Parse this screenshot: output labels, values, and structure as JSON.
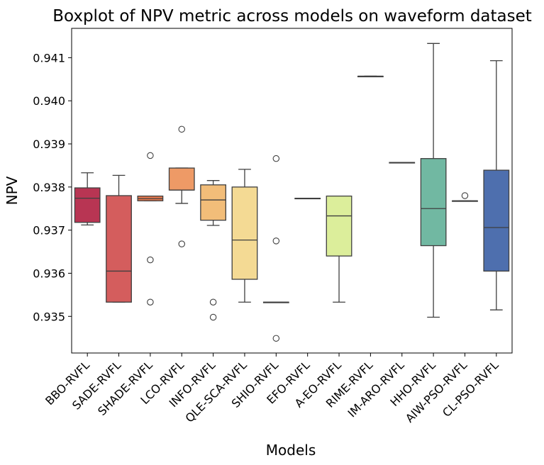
{
  "chart_data": {
    "type": "boxplot",
    "title": "Boxplot of NPV metric across models on waveform dataset",
    "xlabel": "Models",
    "ylabel": "NPV",
    "ylim": [
      0.93415,
      0.94168
    ],
    "yticks": [
      "0.935",
      "0.936",
      "0.937",
      "0.938",
      "0.939",
      "0.940",
      "0.941"
    ],
    "grid": false,
    "categories": [
      "BBO-RVFL",
      "SADE-RVFL",
      "SHADE-RVFL",
      "LCO-RVFL",
      "INFO-RVFL",
      "QLE-SCA-RVFL",
      "SHIO-RVFL",
      "EFO-RVFL",
      "A-EO-RVFL",
      "RIME-RVFL",
      "IM-ARO-RVFL",
      "HHO-RVFL",
      "AIW-PSO-RVFL",
      "CL-PSO-RVFL"
    ],
    "series": [
      {
        "whisker_low": 0.93712,
        "q1": 0.93718,
        "median": 0.93774,
        "q3": 0.93798,
        "whisker_high": 0.93833,
        "outliers": [],
        "color": "#b83553"
      },
      {
        "whisker_low": 0.93533,
        "q1": 0.93533,
        "median": 0.93605,
        "q3": 0.9378,
        "whisker_high": 0.93827,
        "outliers": [],
        "color": "#d45d5d"
      },
      {
        "whisker_low": 0.93768,
        "q1": 0.93768,
        "median": 0.93773,
        "q3": 0.93779,
        "whisker_high": 0.93779,
        "outliers": [
          0.93873,
          0.93631,
          0.93533
        ],
        "color": "#e7794f"
      },
      {
        "whisker_low": 0.93762,
        "q1": 0.93793,
        "median": 0.93793,
        "q3": 0.93844,
        "whisker_high": 0.93844,
        "outliers": [
          0.93934,
          0.93668
        ],
        "color": "#ee9a66"
      },
      {
        "whisker_low": 0.93711,
        "q1": 0.93723,
        "median": 0.9377,
        "q3": 0.93805,
        "whisker_high": 0.93815,
        "outliers": [
          0.93533,
          0.93498
        ],
        "color": "#f2bd79"
      },
      {
        "whisker_low": 0.93533,
        "q1": 0.93586,
        "median": 0.93677,
        "q3": 0.938,
        "whisker_high": 0.93841,
        "outliers": [],
        "color": "#f4da94"
      },
      {
        "whisker_low": 0.93533,
        "q1": 0.93533,
        "median": 0.93533,
        "q3": 0.93533,
        "whisker_high": 0.93533,
        "outliers": [
          0.93866,
          0.93675,
          0.93449
        ],
        "color": "#f5eda4"
      },
      {
        "whisker_low": 0.93774,
        "q1": 0.93774,
        "median": 0.93774,
        "q3": 0.93774,
        "whisker_high": 0.93774,
        "outliers": [],
        "color": "#eef5a0"
      },
      {
        "whisker_low": 0.93533,
        "q1": 0.9364,
        "median": 0.93733,
        "q3": 0.93779,
        "whisker_high": 0.93779,
        "outliers": [],
        "color": "#dcee9b"
      },
      {
        "whisker_low": 0.94057,
        "q1": 0.94057,
        "median": 0.94057,
        "q3": 0.94057,
        "whisker_high": 0.94057,
        "outliers": [],
        "color": "#bce4a0"
      },
      {
        "whisker_low": 0.93857,
        "q1": 0.93857,
        "median": 0.93857,
        "q3": 0.93857,
        "whisker_high": 0.93857,
        "outliers": [],
        "color": "#95d3a3"
      },
      {
        "whisker_low": 0.93498,
        "q1": 0.93664,
        "median": 0.9375,
        "q3": 0.93866,
        "whisker_high": 0.94133,
        "outliers": [],
        "color": "#71b8a2"
      },
      {
        "whisker_low": 0.93768,
        "q1": 0.93768,
        "median": 0.93768,
        "q3": 0.93768,
        "whisker_high": 0.93768,
        "outliers": [
          0.9378
        ],
        "color": "#5c94b8"
      },
      {
        "whisker_low": 0.93515,
        "q1": 0.93605,
        "median": 0.93706,
        "q3": 0.93839,
        "whisker_high": 0.94093,
        "outliers": [],
        "color": "#4e6fae"
      }
    ]
  }
}
